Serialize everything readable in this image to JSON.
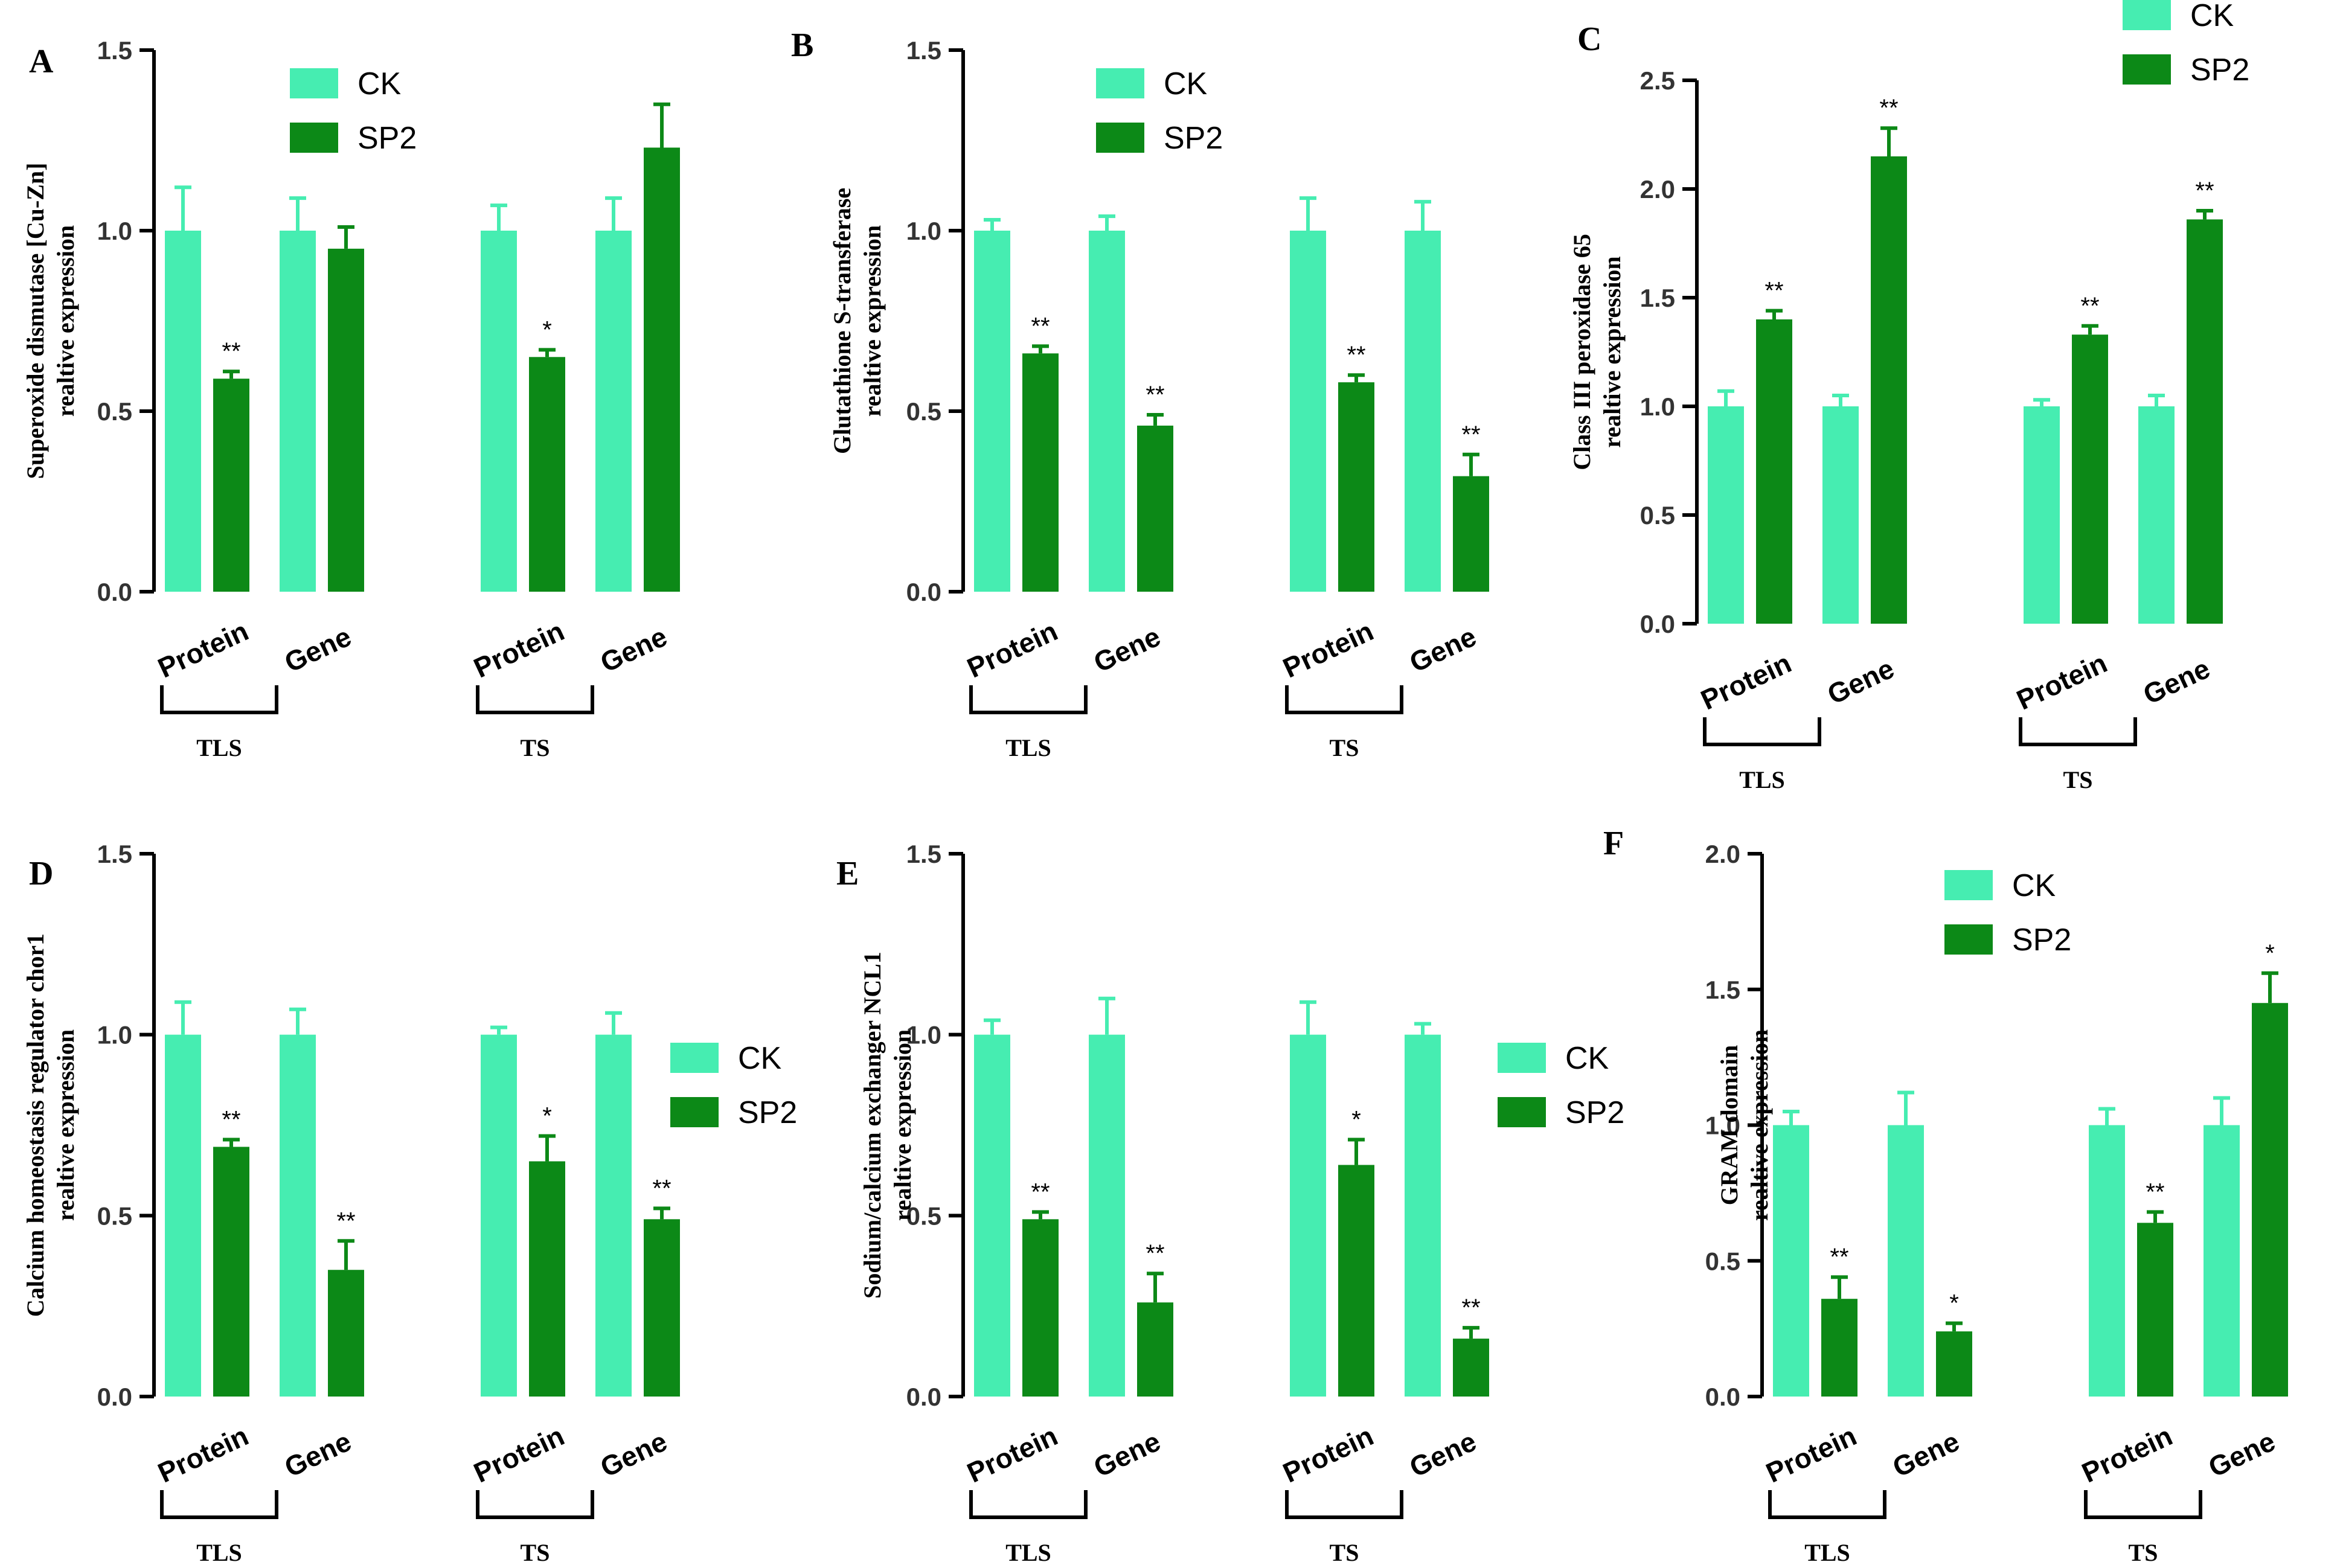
{
  "colors": {
    "ck": "#46EDB1",
    "sp2": "#0C8917",
    "axis": "#000000"
  },
  "legend_labels": [
    "CK",
    "SP2"
  ],
  "category_labels": [
    "Protein",
    "Gene",
    "Protein",
    "Gene"
  ],
  "group_labels": [
    "TLS",
    "TS"
  ],
  "chart_data": [
    {
      "type": "bar",
      "panel": "A",
      "legend_position": "top-center",
      "ylabel_lines": [
        "Superoxide dismutase [Cu-Zn]",
        "realtive expression"
      ],
      "ylim": [
        0,
        1.5
      ],
      "ytick_labels": [
        "0.0",
        "0.5",
        "1.0",
        "1.5"
      ],
      "categories": [
        "Protein",
        "Gene",
        "Protein",
        "Gene"
      ],
      "groups": [
        "TLS",
        "TS"
      ],
      "series": [
        {
          "name": "CK",
          "values": [
            1.0,
            1.0,
            1.0,
            1.0
          ],
          "errors": [
            0.12,
            0.09,
            0.07,
            0.09
          ],
          "sig": [
            "",
            "",
            "",
            ""
          ]
        },
        {
          "name": "SP2",
          "values": [
            0.59,
            0.95,
            0.65,
            1.23
          ],
          "errors": [
            0.02,
            0.06,
            0.02,
            0.12
          ],
          "sig": [
            "**",
            "",
            "*",
            ""
          ]
        }
      ]
    },
    {
      "type": "bar",
      "panel": "B",
      "legend_position": "top-center",
      "ylabel_lines": [
        "Glutathione S-transferase",
        "realtive expression"
      ],
      "ylim": [
        0,
        1.5
      ],
      "ytick_labels": [
        "0.0",
        "0.5",
        "1.0",
        "1.5"
      ],
      "categories": [
        "Protein",
        "Gene",
        "Protein",
        "Gene"
      ],
      "groups": [
        "TLS",
        "TS"
      ],
      "series": [
        {
          "name": "CK",
          "values": [
            1.0,
            1.0,
            1.0,
            1.0
          ],
          "errors": [
            0.03,
            0.04,
            0.09,
            0.08
          ],
          "sig": [
            "",
            "",
            "",
            ""
          ]
        },
        {
          "name": "SP2",
          "values": [
            0.66,
            0.46,
            0.58,
            0.32
          ],
          "errors": [
            0.02,
            0.03,
            0.02,
            0.06
          ],
          "sig": [
            "**",
            "**",
            "**",
            "**"
          ]
        }
      ]
    },
    {
      "type": "bar",
      "panel": "C",
      "legend_position": "top-right",
      "ylabel_lines": [
        "Class III peroxidase 65",
        "realtive expression"
      ],
      "ylim": [
        0,
        2.5
      ],
      "ytick_labels": [
        "0.0",
        "0.5",
        "1.0",
        "1.5",
        "2.0",
        "2.5"
      ],
      "categories": [
        "Protein",
        "Gene",
        "Protein",
        "Gene"
      ],
      "groups": [
        "TLS",
        "TS"
      ],
      "series": [
        {
          "name": "CK",
          "values": [
            1.0,
            1.0,
            1.0,
            1.0
          ],
          "errors": [
            0.07,
            0.05,
            0.03,
            0.05
          ],
          "sig": [
            "",
            "",
            "",
            ""
          ]
        },
        {
          "name": "SP2",
          "values": [
            1.4,
            2.15,
            1.33,
            1.86
          ],
          "errors": [
            0.04,
            0.13,
            0.04,
            0.04
          ],
          "sig": [
            "**",
            "**",
            "**",
            "**"
          ]
        }
      ]
    },
    {
      "type": "bar",
      "panel": "D",
      "legend_position": "right",
      "ylabel_lines": [
        "Calcium homeostasis regulator chor1",
        "realtive expression"
      ],
      "ylim": [
        0,
        1.5
      ],
      "ytick_labels": [
        "0.0",
        "0.5",
        "1.0",
        "1.5"
      ],
      "categories": [
        "Protein",
        "Gene",
        "Protein",
        "Gene"
      ],
      "groups": [
        "TLS",
        "TS"
      ],
      "series": [
        {
          "name": "CK",
          "values": [
            1.0,
            1.0,
            1.0,
            1.0
          ],
          "errors": [
            0.09,
            0.07,
            0.02,
            0.06
          ],
          "sig": [
            "",
            "",
            "",
            ""
          ]
        },
        {
          "name": "SP2",
          "values": [
            0.69,
            0.35,
            0.65,
            0.49
          ],
          "errors": [
            0.02,
            0.08,
            0.07,
            0.03
          ],
          "sig": [
            "**",
            "**",
            "*",
            "**"
          ]
        }
      ]
    },
    {
      "type": "bar",
      "panel": "E",
      "legend_position": "right",
      "ylabel_lines": [
        "Sodium/calcium exchanger NCL1",
        "realtive expression"
      ],
      "ylim": [
        0,
        1.5
      ],
      "ytick_labels": [
        "0.0",
        "0.5",
        "1.0",
        "1.5"
      ],
      "categories": [
        "Protein",
        "Gene",
        "Protein",
        "Gene"
      ],
      "groups": [
        "TLS",
        "TS"
      ],
      "series": [
        {
          "name": "CK",
          "values": [
            1.0,
            1.0,
            1.0,
            1.0
          ],
          "errors": [
            0.04,
            0.1,
            0.09,
            0.03
          ],
          "sig": [
            "",
            "",
            "",
            ""
          ]
        },
        {
          "name": "SP2",
          "values": [
            0.49,
            0.26,
            0.64,
            0.16
          ],
          "errors": [
            0.02,
            0.08,
            0.07,
            0.03
          ],
          "sig": [
            "**",
            "**",
            "*",
            "**"
          ]
        }
      ]
    },
    {
      "type": "bar",
      "panel": "F",
      "legend_position": "top-center",
      "ylabel_lines": [
        "GRAM domain",
        "realtive expression"
      ],
      "ylim": [
        0,
        2.0
      ],
      "ytick_labels": [
        "0.0",
        "0.5",
        "1.0",
        "1.5",
        "2.0"
      ],
      "categories": [
        "Protein",
        "Gene",
        "Protein",
        "Gene"
      ],
      "groups": [
        "TLS",
        "TS"
      ],
      "series": [
        {
          "name": "CK",
          "values": [
            1.0,
            1.0,
            1.0,
            1.0
          ],
          "errors": [
            0.05,
            0.12,
            0.06,
            0.1
          ],
          "sig": [
            "",
            "",
            "",
            ""
          ]
        },
        {
          "name": "SP2",
          "values": [
            0.36,
            0.24,
            0.64,
            1.45
          ],
          "errors": [
            0.08,
            0.03,
            0.04,
            0.11
          ],
          "sig": [
            "**",
            "*",
            "**",
            "*"
          ]
        }
      ]
    }
  ]
}
